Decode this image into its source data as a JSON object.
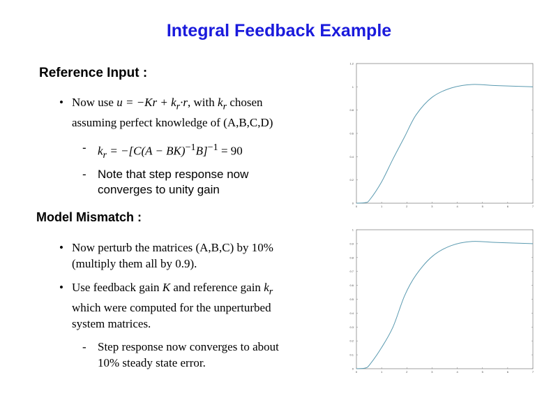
{
  "title": "Integral Feedback Example",
  "section1": {
    "heading": "Reference Input :",
    "bullet1": {
      "pre": "Now use ",
      "math": "u = −Kr + k",
      "sub": "r",
      "math2": "·r",
      "mid": ", with ",
      "k": "k",
      "ksub": "r",
      "post": " chosen",
      "line2": "assuming perfect knowledge of (A,B,C,D)"
    },
    "sub1": {
      "math": "k",
      "sub": "r",
      "eq": " = −[C(A − BK)",
      "sup": "−1",
      "eq2": "B]",
      "sup2": "−1",
      "eq3": " = 90"
    },
    "sub2": {
      "line1": "Note that step response now",
      "line2": "converges to unity gain"
    }
  },
  "section2": {
    "heading": "Model Mismatch :",
    "bullet1": {
      "line1": "Now perturb the matrices (A,B,C) by 10%",
      "line2": "(multiply them all by 0.9)."
    },
    "bullet2": {
      "pre": "Use feedback gain ",
      "K": "K",
      "mid": " and reference gain ",
      "k": "k",
      "ksub": "r",
      "line2": "which were computed for the unperturbed",
      "line3": "system matrices."
    },
    "sub1": {
      "line1": "Step response now converges to about",
      "line2": "10% steady state error."
    }
  },
  "bullet_char": "•",
  "dash_char": "-",
  "chart_data": [
    {
      "type": "line",
      "title": "",
      "xlabel": "",
      "ylabel": "",
      "xlim": [
        0,
        7
      ],
      "ylim": [
        0,
        1.2
      ],
      "grid": false,
      "line_color": "#5a9ab0",
      "x": [
        0,
        0.35,
        0.53,
        0.99,
        1.45,
        1.91,
        2.37,
        3.0,
        3.76,
        4.59,
        5.6,
        7
      ],
      "y": [
        0,
        0.005,
        0.03,
        0.18,
        0.38,
        0.57,
        0.76,
        0.91,
        0.99,
        1.02,
        1.01,
        1.0
      ],
      "xticks": [
        0,
        1,
        2,
        3,
        4,
        5,
        6,
        7
      ],
      "yticks": [
        0,
        0.2,
        0.4,
        0.6,
        0.8,
        1,
        1.2
      ]
    },
    {
      "type": "line",
      "title": "",
      "xlabel": "",
      "ylabel": "",
      "xlim": [
        0,
        7
      ],
      "ylim": [
        0,
        1
      ],
      "grid": false,
      "line_color": "#5a9ab0",
      "x": [
        0,
        0.35,
        0.53,
        0.99,
        1.45,
        1.91,
        2.37,
        3.02,
        3.76,
        4.59,
        5.6,
        7
      ],
      "y": [
        0,
        0.005,
        0.03,
        0.15,
        0.3,
        0.525,
        0.676,
        0.81,
        0.886,
        0.916,
        0.908,
        0.9
      ],
      "xticks": [
        0,
        1,
        2,
        3,
        4,
        5,
        6,
        7
      ],
      "yticks": [
        0,
        0.1,
        0.2,
        0.3,
        0.4,
        0.5,
        0.6,
        0.7,
        0.8,
        0.9,
        1
      ]
    }
  ]
}
